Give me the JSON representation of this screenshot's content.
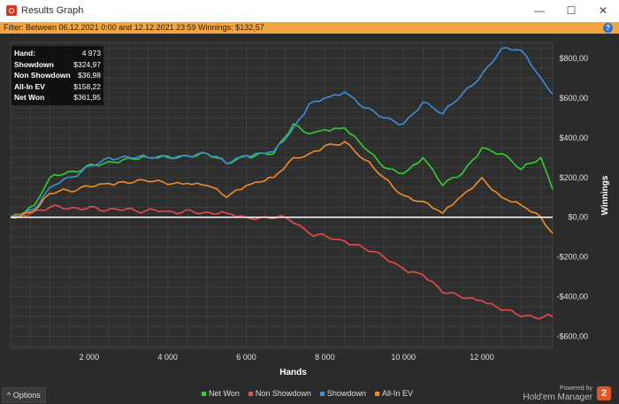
{
  "window": {
    "title": "Results Graph",
    "minimize_glyph": "—",
    "maximize_glyph": "☐",
    "close_glyph": "✕"
  },
  "filter": {
    "text": "Filter: Between 06.12.2021 0:00 and 12.12.2021 23:59  Winnings: $132,57",
    "help_glyph": "?"
  },
  "stats": [
    {
      "label": "Hand:",
      "value": "4 973"
    },
    {
      "label": "Showdown",
      "value": "$324,97"
    },
    {
      "label": "Non Showdown",
      "value": "$36,98"
    },
    {
      "label": "All-In EV",
      "value": "$158,22"
    },
    {
      "label": "Net Won",
      "value": "$361,95"
    }
  ],
  "options": {
    "label": "^  Options"
  },
  "brand": {
    "powered": "Powered by",
    "name": "Hold'em Manager",
    "logo": "2"
  },
  "colors": {
    "background": "#2b2b2b",
    "net_won": "#2fd12f",
    "non_showdown": "#e84a4a",
    "showdown": "#3b8fd9",
    "all_in_ev": "#f08c2a",
    "filter_bar": "#f3a640"
  },
  "chart_data": {
    "type": "line",
    "xlabel": "Hands",
    "ylabel": "Winnings",
    "x_ticks": [
      2000,
      4000,
      6000,
      8000,
      10000,
      12000
    ],
    "x_tick_labels": [
      "2 000",
      "4 000",
      "6 000",
      "8 000",
      "10 000",
      "12 000"
    ],
    "y_ticks": [
      -600,
      -400,
      -200,
      0,
      200,
      400,
      600,
      800
    ],
    "y_tick_labels": [
      "-$600,00",
      "-$400,00",
      "-$200,00",
      "$0,00",
      "$200,00",
      "$400,00",
      "$600,00",
      "$800,00"
    ],
    "xlim": [
      0,
      13800
    ],
    "ylim": [
      -660,
      880
    ],
    "grid": true,
    "legend_position": "bottom",
    "series": [
      {
        "name": "Net Won",
        "color": "#2fd12f",
        "x": [
          0,
          600,
          1000,
          2500,
          3500,
          4500,
          5000,
          5500,
          6000,
          6700,
          7200,
          7600,
          8000,
          8500,
          9000,
          9500,
          10000,
          10500,
          11000,
          11500,
          12000,
          12500,
          13000,
          13500,
          13800
        ],
        "y": [
          0,
          60,
          200,
          280,
          300,
          310,
          320,
          270,
          310,
          320,
          470,
          420,
          440,
          450,
          350,
          250,
          220,
          300,
          160,
          220,
          350,
          320,
          240,
          300,
          140
        ]
      },
      {
        "name": "Non Showdown",
        "color": "#e84a4a",
        "x": [
          0,
          1000,
          2500,
          4000,
          5500,
          6000,
          7000,
          7600,
          8500,
          9500,
          10000,
          10500,
          11000,
          12000,
          13000,
          13800
        ],
        "y": [
          0,
          50,
          40,
          30,
          20,
          0,
          0,
          -80,
          -120,
          -200,
          -260,
          -290,
          -380,
          -420,
          -500,
          -500
        ]
      },
      {
        "name": "Showdown",
        "color": "#3b8fd9",
        "x": [
          0,
          600,
          1000,
          2500,
          3500,
          4500,
          5000,
          5500,
          6000,
          6700,
          7200,
          7600,
          8000,
          8500,
          9000,
          9500,
          10000,
          10500,
          11000,
          11500,
          12000,
          12500,
          13000,
          13500,
          13800
        ],
        "y": [
          0,
          40,
          150,
          300,
          300,
          310,
          320,
          270,
          310,
          330,
          450,
          570,
          600,
          630,
          550,
          500,
          470,
          580,
          520,
          620,
          720,
          850,
          840,
          700,
          620
        ]
      },
      {
        "name": "All-In EV",
        "color": "#f08c2a",
        "x": [
          0,
          600,
          1000,
          2500,
          3500,
          4500,
          5000,
          5500,
          6000,
          6700,
          7200,
          7600,
          8000,
          8500,
          9000,
          9500,
          10000,
          10500,
          11000,
          11500,
          12000,
          12500,
          13000,
          13500,
          13800
        ],
        "y": [
          0,
          30,
          120,
          170,
          180,
          170,
          160,
          100,
          160,
          200,
          300,
          320,
          360,
          380,
          290,
          200,
          110,
          80,
          20,
          110,
          200,
          100,
          60,
          0,
          -80
        ]
      }
    ]
  }
}
